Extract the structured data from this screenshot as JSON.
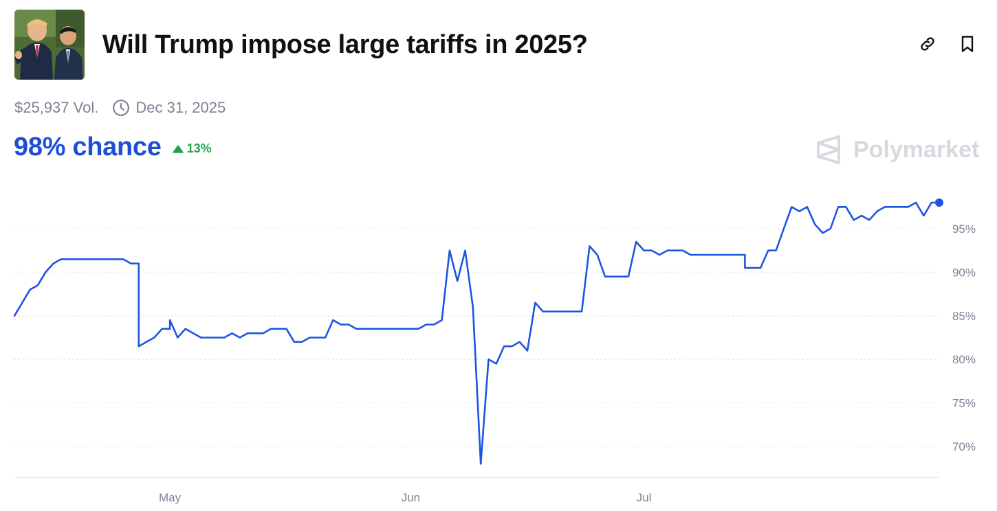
{
  "market": {
    "title": "Will Trump impose large tariffs in 2025?",
    "volume": "$25,937 Vol.",
    "end_date": "Dec 31, 2025",
    "chance": "98% chance",
    "change": "13%",
    "change_direction": "up",
    "brand": "Polymarket"
  },
  "icons": {
    "link": "link-icon",
    "bookmark": "bookmark-icon",
    "clock": "clock-icon",
    "change_arrow": "triangle-up-icon",
    "brand_logo": "polymarket-logo-icon"
  },
  "colors": {
    "accent": "#1d4ed8",
    "line": "#1d55e0",
    "positive": "#22a04b",
    "muted": "#7c8391",
    "brand": "#d6d9de"
  },
  "chart_data": {
    "type": "line",
    "title": "",
    "xlabel": "",
    "ylabel": "",
    "x_ticks": [
      "May",
      "Jun",
      "Jul"
    ],
    "y_ticks": [
      "70%",
      "75%",
      "80%",
      "85%",
      "90%",
      "95%"
    ],
    "ylim": [
      66.5,
      99.5
    ],
    "xlim": [
      "2025-04-11",
      "2025-08-08"
    ],
    "grid": "horizontal dotted",
    "series": [
      {
        "name": "",
        "color": "#1d55e0",
        "points": [
          [
            "2025-04-11",
            85.0
          ],
          [
            "2025-04-12",
            86.5
          ],
          [
            "2025-04-13",
            88.0
          ],
          [
            "2025-04-14",
            88.5
          ],
          [
            "2025-04-15",
            90.0
          ],
          [
            "2025-04-16",
            91.0
          ],
          [
            "2025-04-17",
            91.5
          ],
          [
            "2025-04-19",
            91.5
          ],
          [
            "2025-04-21",
            91.5
          ],
          [
            "2025-04-23",
            91.5
          ],
          [
            "2025-04-25",
            91.5
          ],
          [
            "2025-04-26",
            91.0
          ],
          [
            "2025-04-27",
            91.0
          ],
          [
            "2025-04-27",
            81.5
          ],
          [
            "2025-04-28",
            82.0
          ],
          [
            "2025-04-29",
            82.5
          ],
          [
            "2025-04-30",
            83.5
          ],
          [
            "2025-05-01",
            83.5
          ],
          [
            "2025-05-01",
            84.5
          ],
          [
            "2025-05-02",
            82.5
          ],
          [
            "2025-05-03",
            83.5
          ],
          [
            "2025-05-04",
            83.0
          ],
          [
            "2025-05-05",
            82.5
          ],
          [
            "2025-05-07",
            82.5
          ],
          [
            "2025-05-08",
            82.5
          ],
          [
            "2025-05-09",
            83.0
          ],
          [
            "2025-05-10",
            82.5
          ],
          [
            "2025-05-11",
            83.0
          ],
          [
            "2025-05-13",
            83.0
          ],
          [
            "2025-05-14",
            83.5
          ],
          [
            "2025-05-16",
            83.5
          ],
          [
            "2025-05-17",
            82.0
          ],
          [
            "2025-05-18",
            82.0
          ],
          [
            "2025-05-19",
            82.5
          ],
          [
            "2025-05-21",
            82.5
          ],
          [
            "2025-05-22",
            84.5
          ],
          [
            "2025-05-23",
            84.0
          ],
          [
            "2025-05-24",
            84.0
          ],
          [
            "2025-05-25",
            83.5
          ],
          [
            "2025-05-27",
            83.5
          ],
          [
            "2025-05-29",
            83.5
          ],
          [
            "2025-05-31",
            83.5
          ],
          [
            "2025-06-02",
            83.5
          ],
          [
            "2025-06-03",
            84.0
          ],
          [
            "2025-06-04",
            84.0
          ],
          [
            "2025-06-05",
            84.5
          ],
          [
            "2025-06-06",
            92.5
          ],
          [
            "2025-06-07",
            89.0
          ],
          [
            "2025-06-08",
            92.5
          ],
          [
            "2025-06-09",
            86.0
          ],
          [
            "2025-06-10",
            68.0
          ],
          [
            "2025-06-11",
            80.0
          ],
          [
            "2025-06-12",
            79.5
          ],
          [
            "2025-06-13",
            81.5
          ],
          [
            "2025-06-14",
            81.5
          ],
          [
            "2025-06-15",
            82.0
          ],
          [
            "2025-06-16",
            81.0
          ],
          [
            "2025-06-17",
            86.5
          ],
          [
            "2025-06-18",
            85.5
          ],
          [
            "2025-06-19",
            85.5
          ],
          [
            "2025-06-21",
            85.5
          ],
          [
            "2025-06-23",
            85.5
          ],
          [
            "2025-06-24",
            93.0
          ],
          [
            "2025-06-25",
            92.0
          ],
          [
            "2025-06-26",
            89.5
          ],
          [
            "2025-06-28",
            89.5
          ],
          [
            "2025-06-29",
            89.5
          ],
          [
            "2025-06-30",
            93.5
          ],
          [
            "2025-07-01",
            92.5
          ],
          [
            "2025-07-02",
            92.5
          ],
          [
            "2025-07-03",
            92.0
          ],
          [
            "2025-07-04",
            92.5
          ],
          [
            "2025-07-06",
            92.5
          ],
          [
            "2025-07-07",
            92.0
          ],
          [
            "2025-07-09",
            92.0
          ],
          [
            "2025-07-12",
            92.0
          ],
          [
            "2025-07-14",
            92.0
          ],
          [
            "2025-07-14",
            90.5
          ],
          [
            "2025-07-16",
            90.5
          ],
          [
            "2025-07-17",
            92.5
          ],
          [
            "2025-07-18",
            92.5
          ],
          [
            "2025-07-19",
            95.0
          ],
          [
            "2025-07-20",
            97.5
          ],
          [
            "2025-07-21",
            97.0
          ],
          [
            "2025-07-22",
            97.5
          ],
          [
            "2025-07-23",
            95.5
          ],
          [
            "2025-07-24",
            94.5
          ],
          [
            "2025-07-25",
            95.0
          ],
          [
            "2025-07-26",
            97.5
          ],
          [
            "2025-07-27",
            97.5
          ],
          [
            "2025-07-28",
            96.0
          ],
          [
            "2025-07-29",
            96.5
          ],
          [
            "2025-07-30",
            96.0
          ],
          [
            "2025-07-31",
            97.0
          ],
          [
            "2025-08-01",
            97.5
          ],
          [
            "2025-08-02",
            97.5
          ],
          [
            "2025-08-03",
            97.5
          ],
          [
            "2025-08-04",
            97.5
          ],
          [
            "2025-08-05",
            98.0
          ],
          [
            "2025-08-06",
            96.5
          ],
          [
            "2025-08-07",
            98.0
          ],
          [
            "2025-08-08",
            98.0
          ]
        ]
      }
    ]
  }
}
